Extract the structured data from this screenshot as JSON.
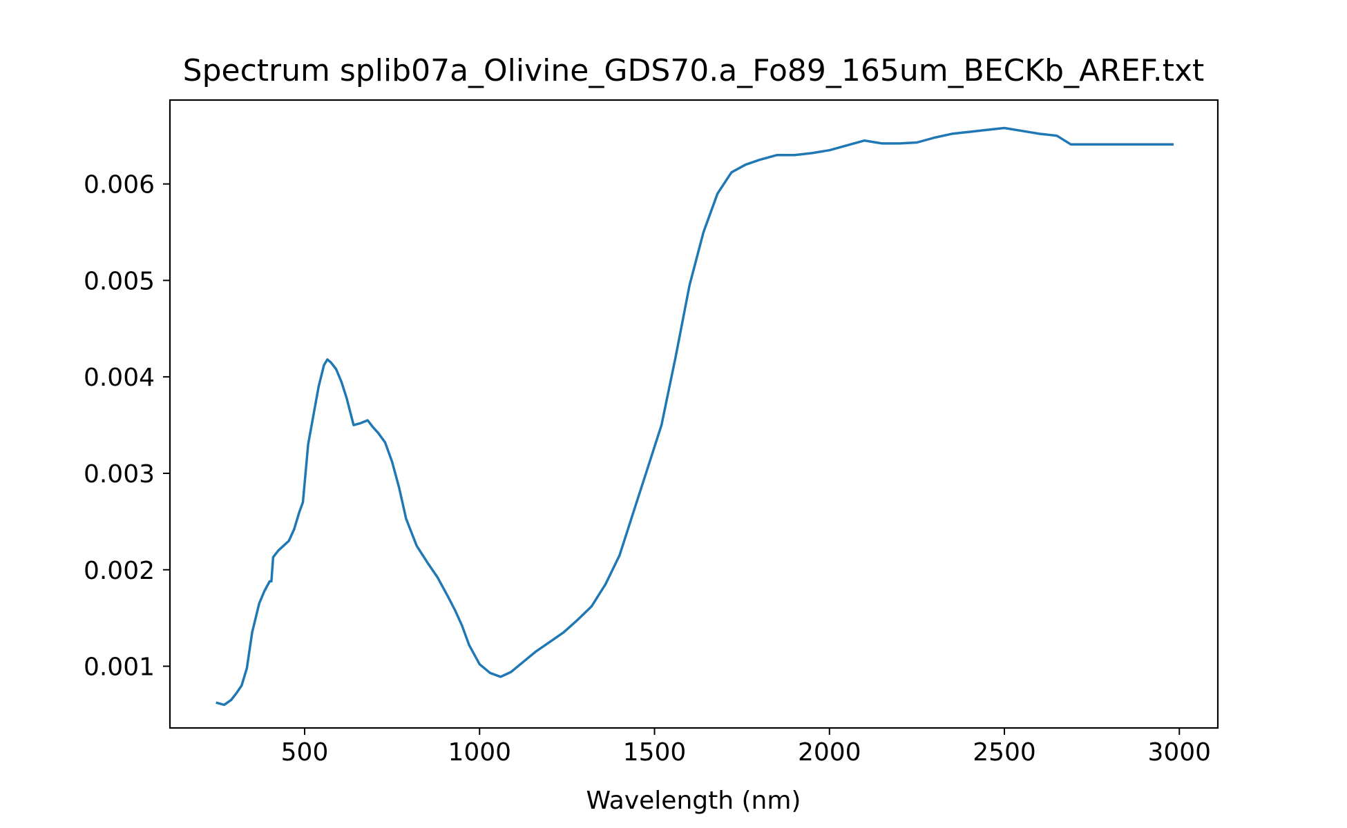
{
  "chart_data": {
    "type": "line",
    "title": "Spectrum splib07a_Olivine_GDS70.a_Fo89_165um_BECKb_AREF.txt",
    "xlabel": "Wavelength (nm)",
    "ylabel": "",
    "xlim": [
      115,
      3110
    ],
    "ylim": [
      0.00036,
      0.00687
    ],
    "x_ticks": [
      500,
      1000,
      1500,
      2000,
      2500,
      3000
    ],
    "x_tick_labels": [
      "500",
      "1000",
      "1500",
      "2000",
      "2500",
      "3000"
    ],
    "y_ticks": [
      0.001,
      0.002,
      0.003,
      0.004,
      0.005,
      0.006
    ],
    "y_tick_labels": [
      "0.001",
      "0.002",
      "0.003",
      "0.004",
      "0.005",
      "0.006"
    ],
    "grid": false,
    "legend": "none",
    "colors": {
      "line": "#1f77b4",
      "axes": "#000000",
      "background": "#ffffff"
    },
    "series": [
      {
        "x": [
          250,
          270,
          290,
          305,
          320,
          335,
          350,
          370,
          385,
          400,
          405,
          410,
          425,
          440,
          455,
          470,
          485,
          495,
          510,
          525,
          540,
          555,
          565,
          575,
          590,
          605,
          620,
          640,
          660,
          680,
          695,
          710,
          730,
          750,
          770,
          790,
          820,
          850,
          880,
          910,
          930,
          950,
          970,
          1000,
          1030,
          1060,
          1090,
          1120,
          1160,
          1200,
          1240,
          1280,
          1320,
          1360,
          1400,
          1440,
          1480,
          1520,
          1560,
          1600,
          1640,
          1680,
          1720,
          1760,
          1800,
          1850,
          1900,
          1950,
          2000,
          2050,
          2100,
          2150,
          2200,
          2250,
          2300,
          2350,
          2400,
          2450,
          2500,
          2550,
          2600,
          2650,
          2690,
          2750,
          2850,
          2980
        ],
        "y": [
          0.00062,
          0.0006,
          0.00065,
          0.00072,
          0.0008,
          0.00098,
          0.00135,
          0.00165,
          0.00178,
          0.00188,
          0.00188,
          0.00213,
          0.0022,
          0.00225,
          0.0023,
          0.00242,
          0.0026,
          0.0027,
          0.0033,
          0.0036,
          0.0039,
          0.00412,
          0.00418,
          0.00415,
          0.00408,
          0.00395,
          0.00378,
          0.0035,
          0.00352,
          0.00355,
          0.00348,
          0.00342,
          0.00332,
          0.00312,
          0.00285,
          0.00253,
          0.00225,
          0.00208,
          0.00192,
          0.00172,
          0.00158,
          0.00142,
          0.00122,
          0.00102,
          0.00093,
          0.00089,
          0.00094,
          0.00103,
          0.00115,
          0.00125,
          0.00135,
          0.00148,
          0.00162,
          0.00185,
          0.00215,
          0.0026,
          0.00305,
          0.0035,
          0.0042,
          0.00495,
          0.0055,
          0.0059,
          0.00612,
          0.0062,
          0.00625,
          0.0063,
          0.0063,
          0.00632,
          0.00635,
          0.0064,
          0.00645,
          0.00642,
          0.00642,
          0.00643,
          0.00648,
          0.00652,
          0.00654,
          0.00656,
          0.00658,
          0.00655,
          0.00652,
          0.0065,
          0.00641,
          0.00641,
          0.00641,
          0.00641
        ]
      }
    ]
  }
}
